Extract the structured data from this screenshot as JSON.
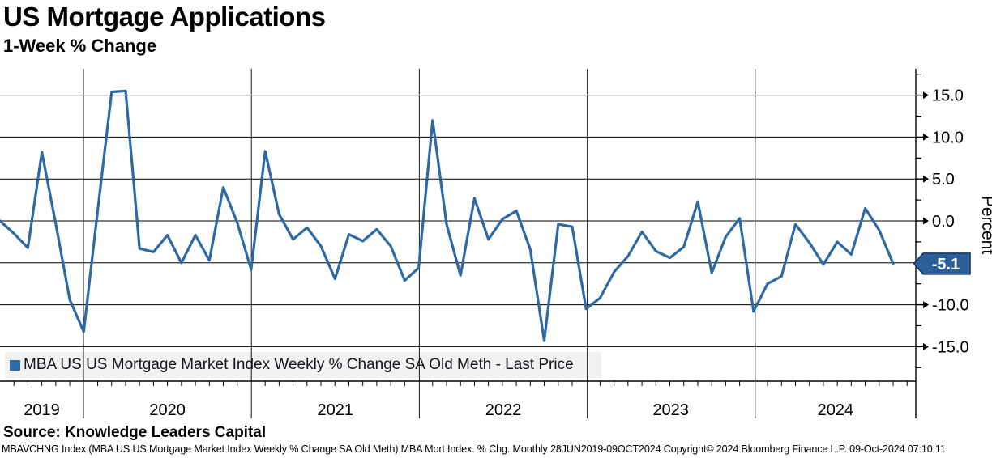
{
  "header": {
    "title": "US Mortgage Applications",
    "subtitle": "1-Week % Change"
  },
  "chart_data": {
    "type": "line",
    "title": "US Mortgage Applications",
    "subtitle": "1-Week % Change",
    "series_name": "MBA US US Mortgage Market Index Weekly % Change SA Old Meth - Last Price",
    "frequency": "Monthly",
    "period": "28JUN2019-09OCT2024",
    "x": [
      "2019-06",
      "2019-07",
      "2019-08",
      "2019-09",
      "2019-10",
      "2019-11",
      "2019-12",
      "2020-01",
      "2020-02",
      "2020-03",
      "2020-04",
      "2020-05",
      "2020-06",
      "2020-07",
      "2020-08",
      "2020-09",
      "2020-10",
      "2020-11",
      "2020-12",
      "2021-01",
      "2021-02",
      "2021-03",
      "2021-04",
      "2021-05",
      "2021-06",
      "2021-07",
      "2021-08",
      "2021-09",
      "2021-10",
      "2021-11",
      "2021-12",
      "2022-01",
      "2022-02",
      "2022-03",
      "2022-04",
      "2022-05",
      "2022-06",
      "2022-07",
      "2022-08",
      "2022-09",
      "2022-10",
      "2022-11",
      "2022-12",
      "2023-01",
      "2023-02",
      "2023-03",
      "2023-04",
      "2023-05",
      "2023-06",
      "2023-07",
      "2023-08",
      "2023-09",
      "2023-10",
      "2023-11",
      "2023-12",
      "2024-01",
      "2024-02",
      "2024-03",
      "2024-04",
      "2024-05",
      "2024-06",
      "2024-07",
      "2024-08",
      "2024-09",
      "2024-10"
    ],
    "values": [
      0.0,
      -1.5,
      -3.2,
      8.2,
      -0.4,
      -9.4,
      -13.2,
      1.2,
      15.4,
      15.5,
      -3.3,
      -3.7,
      -1.7,
      -5.0,
      -1.7,
      -4.7,
      4.0,
      -0.2,
      -5.8,
      8.3,
      0.8,
      -2.2,
      -0.8,
      -3.0,
      -6.9,
      -1.6,
      -2.4,
      -1.0,
      -3.0,
      -7.1,
      -5.6,
      12.0,
      -0.4,
      -6.5,
      2.7,
      -2.2,
      0.2,
      1.2,
      -3.4,
      -14.3,
      -0.4,
      -0.7,
      -10.5,
      -9.2,
      -6.1,
      -4.2,
      -1.3,
      -3.6,
      -4.4,
      -3.1,
      2.3,
      -6.2,
      -1.9,
      0.3,
      -10.8,
      -7.5,
      -6.6,
      -0.4,
      -2.6,
      -5.2,
      -2.5,
      -4.0,
      1.5,
      -1.1,
      -5.1
    ],
    "ylabel": "Percent",
    "xlabel": "",
    "ylim": [
      -17.5,
      17.5
    ],
    "ytick_labels": [
      "15.0",
      "10.0",
      "5.0",
      "0.0",
      "-5.0",
      "-10.0",
      "-15.0"
    ],
    "ytick_values": [
      15,
      10,
      5,
      0,
      -5,
      -10,
      -15
    ],
    "ytick_minor_values": [
      17.5,
      12.5,
      7.5,
      2.5,
      -2.5,
      -7.5,
      -12.5,
      -17.5
    ],
    "xtick_labels": [
      "2019",
      "2020",
      "2021",
      "2022",
      "2023",
      "2024"
    ],
    "grid": true,
    "legend_position": "bottom-left",
    "last_price": "-5.1",
    "line_color": "#2d69a5",
    "badge_fill": "#2b5e99",
    "badge_border": "#16365c",
    "legend_bg": "#f1f1f1"
  },
  "legend": {
    "label": "MBA US US Mortgage Market Index Weekly % Change SA Old Meth - Last Price",
    "swatch_color": "#2d69a5"
  },
  "y_axis": {
    "title": "Percent",
    "badge": "-5.1"
  },
  "footer": {
    "source": "Source: Knowledge Leaders Capital",
    "note": "MBAVCHNG Index (MBA US US Mortgage Market Index Weekly % Change SA Old Meth) MBA Mort Index. % Chg.  Monthly 28JUN2019-09OCT2024 Copyright© 2024 Bloomberg Finance L.P. 09-Oct-2024 07:10:11"
  }
}
